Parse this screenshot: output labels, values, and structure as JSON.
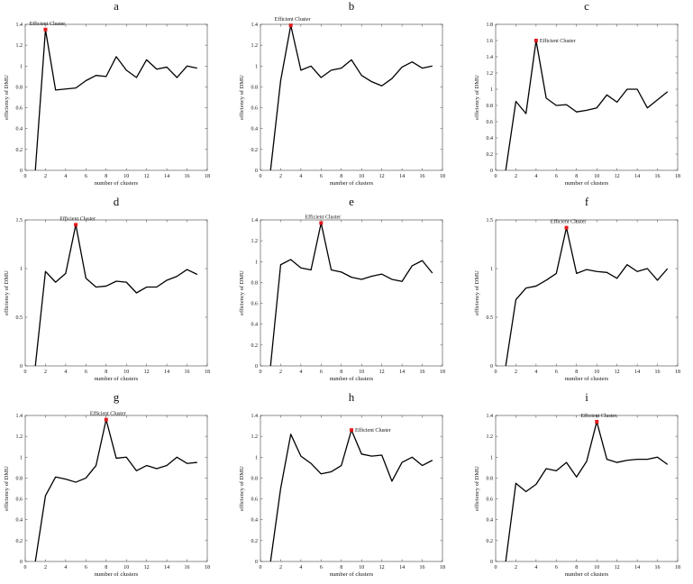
{
  "figure": {
    "xlabel": "number of clusters",
    "ylabel": "efficiency of DMU",
    "annotation": "Efficient Cluster",
    "line_color": "#000000",
    "marker_color": "#e41a1c"
  },
  "chart_data": [
    {
      "type": "line",
      "letter": "a",
      "xlabel": "number of clusters",
      "ylabel": "efficiency of DMU",
      "xlim": [
        0,
        18
      ],
      "xticks": [
        0,
        2,
        4,
        6,
        8,
        10,
        12,
        14,
        16,
        18
      ],
      "ylim": [
        0,
        1.4
      ],
      "yticks": [
        "0",
        "0.2",
        "0.4",
        "0.6",
        "0.8",
        "1",
        "1.2",
        "1.4"
      ],
      "x": [
        1,
        2,
        3,
        4,
        5,
        6,
        7,
        8,
        9,
        10,
        11,
        12,
        13,
        14,
        15,
        16,
        17
      ],
      "y": [
        0,
        1.35,
        0.77,
        0.78,
        0.79,
        0.86,
        0.91,
        0.9,
        1.09,
        0.96,
        0.89,
        1.06,
        0.97,
        0.99,
        0.89,
        1.0,
        0.98
      ],
      "highlight": {
        "x": 2,
        "y": 1.35,
        "label": "Efficient Cluster"
      }
    },
    {
      "type": "line",
      "letter": "b",
      "xlabel": "number of clusters",
      "ylabel": "efficiency of DMU",
      "xlim": [
        0,
        18
      ],
      "xticks": [
        0,
        2,
        4,
        6,
        8,
        10,
        12,
        14,
        16,
        18
      ],
      "ylim": [
        0,
        1.4
      ],
      "yticks": [
        "0",
        "0.2",
        "0.4",
        "0.6",
        "0.8",
        "1",
        "1.2",
        "1.4"
      ],
      "x": [
        1,
        2,
        3,
        4,
        5,
        6,
        7,
        8,
        9,
        10,
        11,
        12,
        13,
        14,
        15,
        16,
        17
      ],
      "y": [
        0,
        0.86,
        1.39,
        0.96,
        1.0,
        0.89,
        0.96,
        0.98,
        1.06,
        0.91,
        0.85,
        0.81,
        0.88,
        0.99,
        1.04,
        0.98,
        1.0
      ],
      "highlight": {
        "x": 3,
        "y": 1.39,
        "label": "Efficient Cluster"
      }
    },
    {
      "type": "line",
      "letter": "c",
      "xlabel": "number of clusters",
      "ylabel": "efficiency of DMU",
      "xlim": [
        0,
        18
      ],
      "xticks": [
        0,
        2,
        4,
        6,
        8,
        10,
        12,
        14,
        16,
        18
      ],
      "ylim": [
        0,
        1.8
      ],
      "yticks": [
        "0",
        "0.2",
        "0.4",
        "0.6",
        "0.8",
        "1",
        "1.2",
        "1.4",
        "1.6",
        "1.8"
      ],
      "x": [
        1,
        2,
        3,
        4,
        5,
        6,
        7,
        8,
        9,
        10,
        11,
        12,
        13,
        14,
        15,
        16,
        17
      ],
      "y": [
        0,
        0.85,
        0.7,
        1.6,
        0.89,
        0.8,
        0.81,
        0.72,
        0.74,
        0.77,
        0.93,
        0.84,
        1.0,
        1.0,
        0.77,
        0.87,
        0.97
      ],
      "highlight": {
        "x": 4,
        "y": 1.6,
        "label": "Efficient Cluster"
      }
    },
    {
      "type": "line",
      "letter": "d",
      "xlabel": "number of clusters",
      "ylabel": "efficiency of DMU",
      "xlim": [
        0,
        18
      ],
      "xticks": [
        0,
        2,
        4,
        6,
        8,
        10,
        12,
        14,
        16,
        18
      ],
      "ylim": [
        0,
        1.5
      ],
      "yticks": [
        "0",
        "0.5",
        "1",
        "1.5"
      ],
      "x": [
        1,
        2,
        3,
        4,
        5,
        6,
        7,
        8,
        9,
        10,
        11,
        12,
        13,
        14,
        15,
        16,
        17
      ],
      "y": [
        0,
        0.97,
        0.86,
        0.95,
        1.45,
        0.9,
        0.81,
        0.82,
        0.87,
        0.86,
        0.75,
        0.81,
        0.81,
        0.88,
        0.92,
        0.99,
        0.94
      ],
      "highlight": {
        "x": 5,
        "y": 1.45,
        "label": "Efficient Cluster"
      }
    },
    {
      "type": "line",
      "letter": "e",
      "xlabel": "number of clusters",
      "ylabel": "efficiency of DMU",
      "xlim": [
        0,
        18
      ],
      "xticks": [
        0,
        2,
        4,
        6,
        8,
        10,
        12,
        14,
        16,
        18
      ],
      "ylim": [
        0,
        1.4
      ],
      "yticks": [
        "0",
        "0.2",
        "0.4",
        "0.6",
        "0.8",
        "1",
        "1.2",
        "1.4"
      ],
      "x": [
        1,
        2,
        3,
        4,
        5,
        6,
        7,
        8,
        9,
        10,
        11,
        12,
        13,
        14,
        15,
        16,
        17
      ],
      "y": [
        0,
        0.97,
        1.02,
        0.94,
        0.92,
        1.37,
        0.92,
        0.9,
        0.85,
        0.83,
        0.86,
        0.88,
        0.83,
        0.81,
        0.96,
        1.01,
        0.89
      ],
      "highlight": {
        "x": 6,
        "y": 1.37,
        "label": "Efficient Cluster"
      }
    },
    {
      "type": "line",
      "letter": "f",
      "xlabel": "number of clusters",
      "ylabel": "efficiency of DMU",
      "xlim": [
        0,
        18
      ],
      "xticks": [
        0,
        2,
        4,
        6,
        8,
        10,
        12,
        14,
        16,
        18
      ],
      "ylim": [
        0,
        1.5
      ],
      "yticks": [
        "0",
        "0.5",
        "1",
        "1.5"
      ],
      "x": [
        1,
        2,
        3,
        4,
        5,
        6,
        7,
        8,
        9,
        10,
        11,
        12,
        13,
        14,
        15,
        16,
        17
      ],
      "y": [
        0,
        0.68,
        0.8,
        0.82,
        0.88,
        0.95,
        1.42,
        0.95,
        0.99,
        0.97,
        0.96,
        0.9,
        1.04,
        0.97,
        1.0,
        0.88,
        1.0
      ],
      "highlight": {
        "x": 7,
        "y": 1.42,
        "label": "Efficient Cluster"
      }
    },
    {
      "type": "line",
      "letter": "g",
      "xlabel": "number of clusters",
      "ylabel": "efficiency of DMU",
      "xlim": [
        0,
        18
      ],
      "xticks": [
        0,
        2,
        4,
        6,
        8,
        10,
        12,
        14,
        16,
        18
      ],
      "ylim": [
        0,
        1.4
      ],
      "yticks": [
        "0",
        "0.2",
        "0.4",
        "0.6",
        "0.8",
        "1",
        "1.2",
        "1.4"
      ],
      "x": [
        1,
        2,
        3,
        4,
        5,
        6,
        7,
        8,
        9,
        10,
        11,
        12,
        13,
        14,
        15,
        16,
        17
      ],
      "y": [
        0,
        0.63,
        0.81,
        0.79,
        0.76,
        0.8,
        0.92,
        1.36,
        0.99,
        1.0,
        0.87,
        0.92,
        0.89,
        0.92,
        1.0,
        0.94,
        0.95
      ],
      "highlight": {
        "x": 8,
        "y": 1.36,
        "label": "Efficient Cluster"
      }
    },
    {
      "type": "line",
      "letter": "h",
      "xlabel": "number of clusters",
      "ylabel": "efficiency of DMU",
      "xlim": [
        0,
        18
      ],
      "xticks": [
        0,
        2,
        4,
        6,
        8,
        10,
        12,
        14,
        16,
        18
      ],
      "ylim": [
        0,
        1.4
      ],
      "yticks": [
        "0",
        "0.2",
        "0.4",
        "0.6",
        "0.8",
        "1",
        "1.2",
        "1.4"
      ],
      "x": [
        1,
        2,
        3,
        4,
        5,
        6,
        7,
        8,
        9,
        10,
        11,
        12,
        13,
        14,
        15,
        16,
        17
      ],
      "y": [
        0,
        0.7,
        1.22,
        1.01,
        0.94,
        0.84,
        0.86,
        0.92,
        1.26,
        1.03,
        1.01,
        1.02,
        0.77,
        0.95,
        1.0,
        0.92,
        0.97
      ],
      "highlight": {
        "x": 9,
        "y": 1.26,
        "label": "Efficient Cluster"
      }
    },
    {
      "type": "line",
      "letter": "i",
      "xlabel": "number of clusters",
      "ylabel": "efficiency of DMU",
      "xlim": [
        0,
        18
      ],
      "xticks": [
        0,
        2,
        4,
        6,
        8,
        10,
        12,
        14,
        16,
        18
      ],
      "ylim": [
        0,
        1.4
      ],
      "yticks": [
        "0",
        "0.2",
        "0.4",
        "0.6",
        "0.8",
        "1",
        "1.2",
        "1.4"
      ],
      "x": [
        1,
        2,
        3,
        4,
        5,
        6,
        7,
        8,
        9,
        10,
        11,
        12,
        13,
        14,
        15,
        16,
        17
      ],
      "y": [
        0,
        0.75,
        0.67,
        0.74,
        0.89,
        0.87,
        0.95,
        0.81,
        0.96,
        1.34,
        0.98,
        0.95,
        0.97,
        0.98,
        0.98,
        1.0,
        0.93
      ],
      "highlight": {
        "x": 10,
        "y": 1.34,
        "label": "Efficient Cluster"
      }
    }
  ]
}
